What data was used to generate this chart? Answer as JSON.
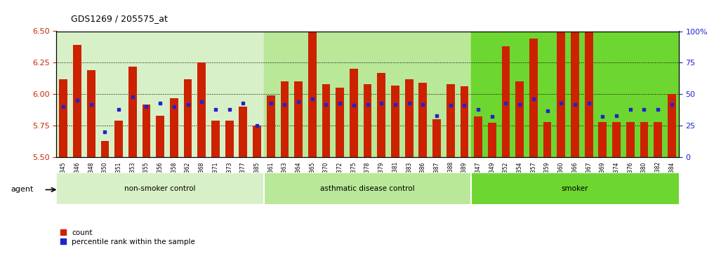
{
  "title": "GDS1269 / 205575_at",
  "ylim_left": [
    5.5,
    6.5
  ],
  "ylim_right": [
    0,
    100
  ],
  "yticks_left": [
    5.5,
    5.75,
    6.0,
    6.25,
    6.5
  ],
  "yticks_right": [
    0,
    25,
    50,
    75,
    100
  ],
  "bar_color": "#cc2200",
  "dot_color": "#2222cc",
  "bar_baseline": 5.5,
  "samples": [
    "GSM38345",
    "GSM38346",
    "GSM38348",
    "GSM38350",
    "GSM38351",
    "GSM38353",
    "GSM38355",
    "GSM38356",
    "GSM38358",
    "GSM38362",
    "GSM38368",
    "GSM38371",
    "GSM38373",
    "GSM38377",
    "GSM38385",
    "GSM38361",
    "GSM38363",
    "GSM38364",
    "GSM38365",
    "GSM38370",
    "GSM38372",
    "GSM38375",
    "GSM38378",
    "GSM38379",
    "GSM38381",
    "GSM38383",
    "GSM38386",
    "GSM38387",
    "GSM38388",
    "GSM38389",
    "GSM38347",
    "GSM38349",
    "GSM38352",
    "GSM38354",
    "GSM38357",
    "GSM38359",
    "GSM38360",
    "GSM38366",
    "GSM38367",
    "GSM38369",
    "GSM38374",
    "GSM38376",
    "GSM38380",
    "GSM38382",
    "GSM38384"
  ],
  "count_values": [
    6.12,
    6.39,
    6.19,
    5.63,
    5.79,
    6.22,
    5.92,
    5.83,
    5.97,
    6.12,
    6.25,
    5.79,
    5.79,
    5.9,
    5.75,
    5.99,
    6.1,
    6.1,
    6.49,
    6.08,
    6.05,
    6.2,
    6.08,
    6.17,
    6.07,
    6.12,
    6.09,
    5.8,
    6.08,
    6.06,
    5.82,
    5.77,
    6.38,
    6.1,
    6.44,
    5.78,
    6.62,
    6.58,
    6.6,
    5.78,
    5.78,
    5.78,
    5.78,
    5.78,
    6.0
  ],
  "percentile_values": [
    40,
    45,
    42,
    20,
    38,
    48,
    40,
    43,
    40,
    42,
    44,
    38,
    38,
    43,
    25,
    43,
    42,
    44,
    46,
    42,
    43,
    41,
    42,
    43,
    42,
    43,
    42,
    33,
    41,
    41,
    38,
    32,
    43,
    42,
    46,
    37,
    43,
    42,
    43,
    32,
    33,
    38,
    38,
    38,
    42
  ],
  "groups": [
    {
      "name": "non-smoker control",
      "start": 0,
      "end": 15,
      "color": "#d8f0c8"
    },
    {
      "name": "asthmatic disease control",
      "start": 15,
      "end": 30,
      "color": "#b8e898"
    },
    {
      "name": "smoker",
      "start": 30,
      "end": 45,
      "color": "#6ed630"
    }
  ],
  "legend_items": [
    {
      "label": "count",
      "color": "#cc2200"
    },
    {
      "label": "percentile rank within the sample",
      "color": "#2222cc"
    }
  ],
  "agent_label": "agent",
  "bg_color": "#ffffff",
  "tick_color_left": "#cc2200",
  "tick_color_right": "#2222cc",
  "grid_color": "#000000"
}
